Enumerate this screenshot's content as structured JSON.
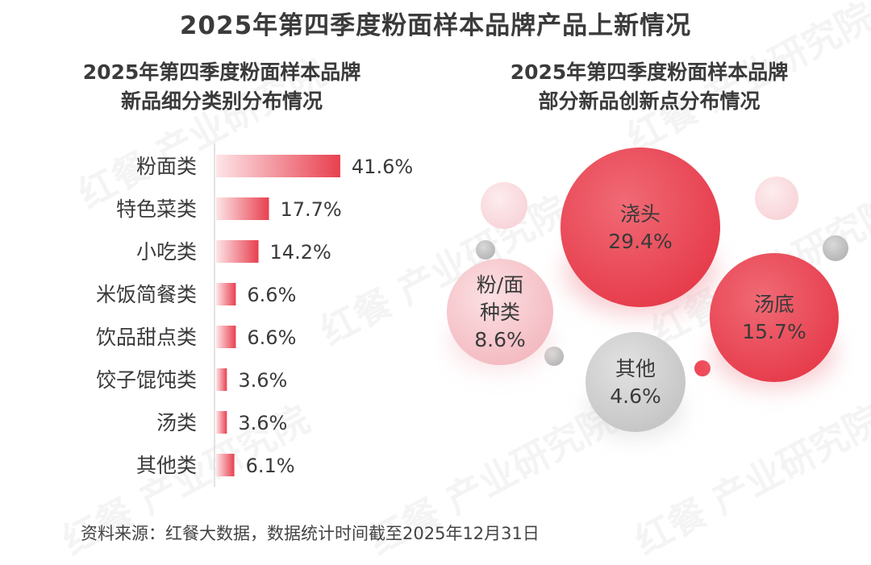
{
  "title": "2025年第四季度粉面样本品牌产品上新情况",
  "left_subtitle": [
    "2025年第四季度粉面样本品牌",
    "新品细分类别分布情况"
  ],
  "right_subtitle": [
    "2025年第四季度粉面样本品牌",
    "部分新品创新点分布情况"
  ],
  "watermark": "红餐 产业研究院",
  "source": "资料来源：红餐大数据，数据统计时间截至2025年12月31日",
  "colors": {
    "accent": "#e8404f",
    "accent_light": "#fde5e8",
    "pink_bubble": "#f6c6cc",
    "grey_bubble": "#cfcfcf",
    "text": "#3a3a3a"
  },
  "chart_data": [
    {
      "type": "bar",
      "orientation": "horizontal",
      "categories": [
        "粉面类",
        "特色菜类",
        "小吃类",
        "米饭简餐类",
        "饮品甜点类",
        "饺子馄饨类",
        "汤类",
        "其他类"
      ],
      "values": [
        41.6,
        17.7,
        14.2,
        6.6,
        6.6,
        3.6,
        3.6,
        6.1
      ],
      "labels": [
        "41.6%",
        "17.7%",
        "14.2%",
        "6.6%",
        "6.6%",
        "3.6%",
        "3.6%",
        "6.1%"
      ],
      "unit": "%"
    },
    {
      "type": "bubble",
      "items": [
        {
          "name": "浇头",
          "value": 29.4,
          "label": "29.4%",
          "color": "#ea4453"
        },
        {
          "name": "汤底",
          "value": 15.7,
          "label": "15.7%",
          "color": "#ec4a58"
        },
        {
          "name": "粉/面种类",
          "name_lines": [
            "粉/面",
            "种类"
          ],
          "value": 8.6,
          "label": "8.6%",
          "color": "#f7cbd0"
        },
        {
          "name": "其他",
          "value": 4.6,
          "label": "4.6%",
          "color": "#d2d2d2"
        }
      ]
    }
  ]
}
